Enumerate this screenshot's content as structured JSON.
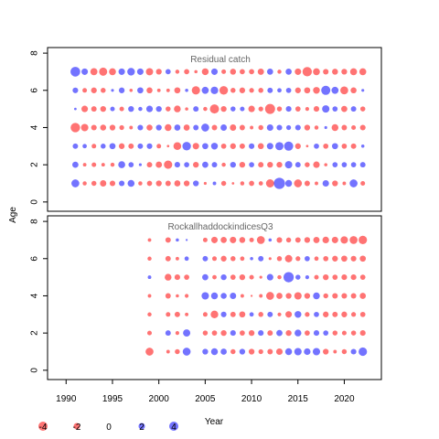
{
  "chart_data": {
    "type": "scatter",
    "subtype": "bubble",
    "ylabel": "Age",
    "xlabel": "Year",
    "xlim": [
      1988,
      2024
    ],
    "xticks": [
      1990,
      1995,
      2000,
      2005,
      2010,
      2015,
      2020
    ],
    "ylim": [
      -0.5,
      8.3
    ],
    "yticks": [
      0,
      2,
      4,
      6,
      8
    ],
    "colors": {
      "negative": "#ff0000",
      "positive": "#0000ff",
      "alpha": 0.55
    },
    "legend": {
      "placement": "bottom-left",
      "values": [
        -4,
        -2,
        0,
        2,
        4
      ],
      "labels": [
        "-4",
        "-2",
        "0",
        "2",
        "4"
      ]
    },
    "panels": [
      {
        "title": "Residual catch",
        "years_start": 1991,
        "ages": [
          1,
          2,
          3,
          4,
          5,
          6,
          7
        ],
        "residuals": {
          "7": [
            4.5,
            2.0,
            -2.4,
            -3.2,
            -2.3,
            2.0,
            2.8,
            2.0,
            -2.5,
            -1.6,
            1.3,
            -0.8,
            -1.3,
            -0.5,
            -2.2,
            2.0,
            -1.0,
            -1.7,
            -1.3,
            -1.3,
            -1.9,
            1.8,
            -0.8,
            1.8,
            -2.0,
            -4.2,
            -2.3,
            -1.5,
            -1.7,
            -1.6,
            -2.3,
            -2.3
          ],
          "6": [
            1.5,
            -1.0,
            -1.6,
            -1.2,
            0.4,
            1.6,
            -0.5,
            1.8,
            -1.7,
            -0.6,
            -0.6,
            -1.8,
            0.5,
            -3.3,
            2.4,
            2.7,
            -3.5,
            -1.2,
            -1.6,
            -1.1,
            -1.2,
            1.4,
            0.9,
            1.3,
            -1.6,
            -1.8,
            -2.2,
            4.0,
            2.4,
            -3.0,
            -1.7,
            0.4
          ],
          "5": [
            0.3,
            -2.0,
            -1.4,
            -1.6,
            1.0,
            -1.0,
            1.6,
            0.8,
            2.0,
            1.6,
            -1.2,
            -2.2,
            -0.5,
            1.4,
            -0.8,
            -4.0,
            -1.6,
            1.2,
            1.0,
            -2.0,
            -1.1,
            -4.8,
            -1.2,
            1.5,
            -1.3,
            -0.7,
            -1.5,
            2.6,
            1.3,
            -1.8,
            1.4,
            -1.2
          ],
          "4": [
            -4.3,
            -2.6,
            -1.5,
            -1.7,
            -1.6,
            -1.1,
            -0.6,
            1.5,
            -1.7,
            1.6,
            -2.2,
            1.8,
            -1.8,
            1.4,
            3.0,
            -1.4,
            1.9,
            -1.9,
            -1.4,
            -0.6,
            -1.2,
            2.0,
            1.5,
            1.1,
            1.5,
            -1.6,
            -0.8,
            0.4,
            -2.2,
            -1.4,
            -1.0,
            -1.5
          ],
          "3": [
            1.4,
            0.9,
            -1.0,
            1.2,
            1.8,
            -1.6,
            -1.4,
            1.4,
            1.5,
            -1.0,
            -0.3,
            -2.9,
            3.5,
            -2.0,
            1.8,
            2.2,
            -1.3,
            -1.6,
            -1.4,
            1.5,
            -1.7,
            2.0,
            3.2,
            4.0,
            -1.6,
            -0.3,
            1.3,
            -1.3,
            1.8,
            -1.3,
            -1.4,
            0.5
          ],
          "2": [
            1.8,
            -0.6,
            -1.0,
            -0.6,
            -0.8,
            2.3,
            1.3,
            0.4,
            -1.4,
            -1.9,
            -3.3,
            1.5,
            1.3,
            -1.6,
            1.8,
            1.4,
            -0.8,
            1.6,
            -1.6,
            1.3,
            -1.4,
            -1.6,
            -1.6,
            2.6,
            1.4,
            -1.2,
            -2.0,
            -0.5,
            1.3,
            1.3,
            1.3,
            1.4
          ],
          "1": [
            3.0,
            -0.8,
            -1.2,
            -1.9,
            -1.5,
            1.5,
            2.3,
            -0.8,
            -1.3,
            -1.6,
            -1.4,
            -1.8,
            -1.6,
            1.6,
            -0.4,
            0.6,
            -1.2,
            -0.3,
            -0.8,
            -1.3,
            -0.9,
            -3.2,
            6.0,
            2.2,
            -3.0,
            -1.4,
            -0.6,
            2.0,
            -1.6,
            -0.6,
            3.0,
            -1.0
          ]
        }
      },
      {
        "title": "RockallhaddockindicesQ3",
        "years_start": 1999,
        "ages": [
          1,
          2,
          3,
          4,
          5,
          6,
          7
        ],
        "residuals": {
          "7": [
            -0.6,
            0,
            -1.4,
            0.5,
            0.2,
            0,
            -1.0,
            -2.0,
            -1.8,
            -2.0,
            -1.7,
            -1.0,
            -3.0,
            0.5,
            -1.5,
            -1.2,
            -1.4,
            -1.6,
            -1.9,
            -2.1,
            -2.0,
            -2.6,
            -3.0,
            -3.4
          ],
          "6": [
            -0.8,
            0,
            -1.4,
            -0.6,
            0.9,
            0,
            1.4,
            -1.0,
            -1.6,
            -1.2,
            -0.9,
            0.5,
            1.4,
            -0.4,
            -1.2,
            -2.6,
            -1.1,
            1.3,
            -0.9,
            -1.3,
            -1.6,
            -1.8,
            -1.5,
            -1.8
          ],
          "5": [
            0.6,
            0,
            -2.2,
            -1.5,
            -1.3,
            0,
            1.8,
            -0.9,
            1.6,
            -1.3,
            -1.6,
            -1.0,
            -0.4,
            2.0,
            -0.8,
            5.0,
            1.2,
            0.7,
            -1.0,
            -1.6,
            -1.3,
            -1.5,
            -1.5,
            -1.3
          ],
          "4": [
            -0.6,
            0,
            -1.4,
            -0.5,
            -0.7,
            0,
            2.6,
            2.2,
            1.7,
            1.9,
            -0.6,
            -0.2,
            -0.6,
            -3.0,
            -1.8,
            -1.6,
            -2.6,
            -1.6,
            2.2,
            -1.2,
            -1.5,
            -1.5,
            -1.4,
            -1.8
          ],
          "3": [
            -0.8,
            0,
            -1.0,
            -1.4,
            -0.6,
            0,
            -1.0,
            -2.8,
            1.5,
            -1.4,
            -1.8,
            0.9,
            -1.2,
            1.4,
            -0.7,
            -2.0,
            2.2,
            -1.1,
            1.3,
            -1.6,
            -1.4,
            -1.6,
            -1.1,
            -1.3
          ],
          "2": [
            -1.0,
            0,
            1.4,
            -0.7,
            2.5,
            0,
            -1.2,
            -1.3,
            -1.6,
            1.5,
            -1.3,
            -1.6,
            1.5,
            -1.4,
            1.8,
            -1.6,
            2.2,
            -1.3,
            1.5,
            1.3,
            -1.2,
            -1.0,
            -1.2,
            -1.5
          ],
          "1": [
            -3.0,
            0,
            -0.6,
            -1.2,
            3.0,
            0,
            1.6,
            2.2,
            1.8,
            -1.2,
            1.6,
            -1.6,
            -1.1,
            -1.4,
            -2.0,
            2.2,
            2.6,
            2.1,
            2.6,
            -1.6,
            -0.6,
            -1.2,
            1.5,
            3.4
          ]
        }
      }
    ]
  }
}
